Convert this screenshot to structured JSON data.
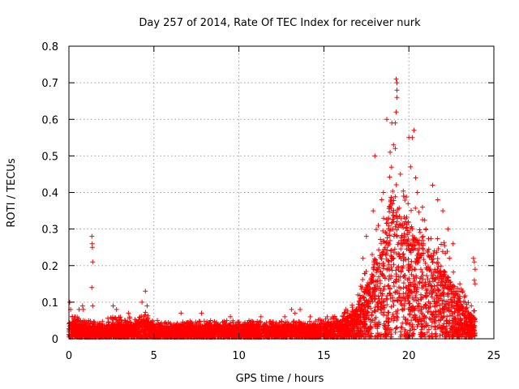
{
  "chart_data": {
    "type": "scatter",
    "title": "Day 257 of 2014, Rate Of TEC Index for receiver nurk",
    "xlabel": "GPS time / hours",
    "ylabel": "ROTI / TECUs",
    "xlim": [
      0,
      25
    ],
    "ylim": [
      0,
      0.8
    ],
    "xticks": [
      0,
      5,
      10,
      15,
      20,
      25
    ],
    "xtick_labels": [
      "0",
      "5",
      "10",
      "15",
      "20",
      "25"
    ],
    "yticks": [
      0,
      0.1,
      0.2,
      0.3,
      0.4,
      0.5,
      0.6,
      0.7,
      0.8
    ],
    "ytick_labels": [
      "0",
      "0.1",
      "0.2",
      "0.3",
      "0.4",
      "0.5",
      "0.6",
      "0.7",
      "0.8"
    ],
    "grid": true,
    "marker": "+",
    "marker_color": "#ff0000",
    "series": [
      {
        "name": "ROTI",
        "envelope_description": "dense data from 0 to ~23.9 h",
        "points": [
          [
            0.05,
            0.1
          ],
          [
            0.1,
            0.08
          ],
          [
            0.2,
            0.06
          ],
          [
            0.35,
            0.05
          ],
          [
            0.6,
            0.08
          ],
          [
            0.8,
            0.09
          ],
          [
            0.85,
            0.08
          ],
          [
            1.35,
            0.28
          ],
          [
            1.37,
            0.26
          ],
          [
            1.38,
            0.25
          ],
          [
            1.4,
            0.21
          ],
          [
            1.35,
            0.14
          ],
          [
            1.4,
            0.09
          ],
          [
            2.6,
            0.09
          ],
          [
            2.8,
            0.08
          ],
          [
            3.5,
            0.07
          ],
          [
            4.3,
            0.1
          ],
          [
            4.5,
            0.13
          ],
          [
            4.6,
            0.09
          ],
          [
            5.2,
            0.05
          ],
          [
            6.6,
            0.07
          ],
          [
            7.8,
            0.07
          ],
          [
            9.5,
            0.06
          ],
          [
            11.3,
            0.06
          ],
          [
            12.7,
            0.06
          ],
          [
            13.1,
            0.08
          ],
          [
            13.3,
            0.07
          ],
          [
            13.6,
            0.08
          ],
          [
            14.2,
            0.06
          ],
          [
            15.2,
            0.06
          ],
          [
            16.3,
            0.08
          ],
          [
            17.0,
            0.12
          ],
          [
            17.3,
            0.22
          ],
          [
            17.5,
            0.28
          ],
          [
            17.9,
            0.35
          ],
          [
            18.0,
            0.5
          ],
          [
            18.2,
            0.31
          ],
          [
            18.4,
            0.38
          ],
          [
            18.5,
            0.4
          ],
          [
            18.7,
            0.6
          ],
          [
            18.9,
            0.51
          ],
          [
            19.0,
            0.59
          ],
          [
            19.1,
            0.53
          ],
          [
            19.2,
            0.59
          ],
          [
            19.25,
            0.71
          ],
          [
            19.3,
            0.7
          ],
          [
            19.3,
            0.68
          ],
          [
            19.3,
            0.66
          ],
          [
            19.25,
            0.62
          ],
          [
            19.2,
            0.52
          ],
          [
            19.5,
            0.45
          ],
          [
            19.7,
            0.39
          ],
          [
            19.8,
            0.32
          ],
          [
            20.0,
            0.55
          ],
          [
            20.1,
            0.47
          ],
          [
            20.2,
            0.55
          ],
          [
            20.3,
            0.57
          ],
          [
            20.4,
            0.44
          ],
          [
            20.5,
            0.4
          ],
          [
            20.8,
            0.36
          ],
          [
            21.0,
            0.3
          ],
          [
            21.4,
            0.42
          ],
          [
            21.7,
            0.38
          ],
          [
            22.0,
            0.35
          ],
          [
            22.3,
            0.3
          ],
          [
            22.6,
            0.26
          ],
          [
            23.0,
            0.15
          ],
          [
            23.3,
            0.1
          ],
          [
            23.8,
            0.22
          ],
          [
            23.85,
            0.21
          ],
          [
            23.9,
            0.19
          ],
          [
            23.85,
            0.16
          ],
          [
            23.9,
            0.15
          ]
        ]
      }
    ],
    "envelope": {
      "x": [
        0,
        0.5,
        1,
        1.5,
        2,
        2.5,
        3,
        3.5,
        4,
        4.5,
        5,
        6,
        7,
        8,
        9,
        10,
        11,
        12,
        13,
        14,
        15,
        15.5,
        16,
        16.5,
        17,
        17.5,
        18,
        18.5,
        19,
        19.5,
        20,
        20.5,
        21,
        21.5,
        22,
        22.5,
        23,
        23.5,
        23.9
      ],
      "upper": [
        0.07,
        0.06,
        0.05,
        0.05,
        0.05,
        0.06,
        0.06,
        0.06,
        0.06,
        0.08,
        0.045,
        0.045,
        0.05,
        0.05,
        0.05,
        0.05,
        0.05,
        0.05,
        0.05,
        0.05,
        0.055,
        0.06,
        0.07,
        0.08,
        0.12,
        0.2,
        0.3,
        0.35,
        0.48,
        0.42,
        0.38,
        0.36,
        0.33,
        0.3,
        0.28,
        0.22,
        0.15,
        0.1,
        0.08
      ],
      "mean": [
        0.03,
        0.025,
        0.022,
        0.022,
        0.022,
        0.025,
        0.025,
        0.025,
        0.028,
        0.035,
        0.022,
        0.022,
        0.024,
        0.024,
        0.024,
        0.024,
        0.024,
        0.024,
        0.024,
        0.024,
        0.026,
        0.028,
        0.032,
        0.04,
        0.06,
        0.09,
        0.14,
        0.17,
        0.25,
        0.22,
        0.2,
        0.18,
        0.16,
        0.14,
        0.12,
        0.1,
        0.07,
        0.045,
        0.035
      ]
    }
  }
}
